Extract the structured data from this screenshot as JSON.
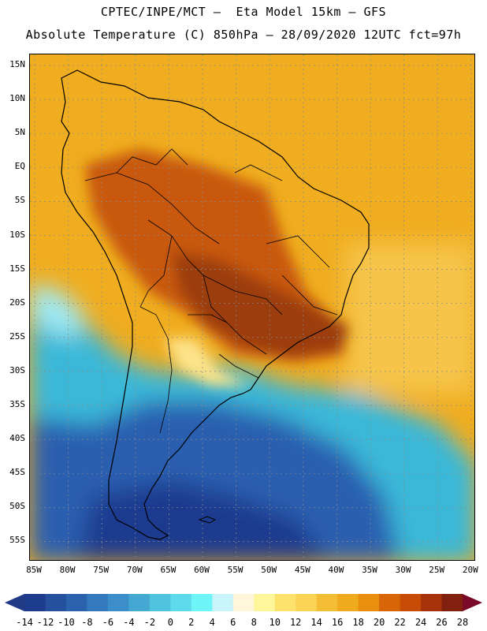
{
  "header": {
    "line1": "CPTEC/INPE/MCT –  Eta Model 15km – GFS",
    "line2": "Absolute Temperature (C) 850hPa – 28/09/2020 12UTC fct=97h"
  },
  "map": {
    "lat_labels": [
      "15N",
      "10N",
      "5N",
      "EQ",
      "5S",
      "10S",
      "15S",
      "20S",
      "25S",
      "30S",
      "35S",
      "40S",
      "45S",
      "50S",
      "55S"
    ],
    "lon_labels": [
      "85W",
      "80W",
      "75W",
      "70W",
      "65W",
      "60W",
      "55W",
      "50W",
      "45W",
      "40W",
      "35W",
      "30W",
      "25W",
      "20W"
    ]
  },
  "colorbar": {
    "labels": [
      "-14",
      "-12",
      "-10",
      "-8",
      "-6",
      "-4",
      "-2",
      "0",
      "2",
      "4",
      "6",
      "8",
      "10",
      "12",
      "14",
      "16",
      "18",
      "20",
      "22",
      "24",
      "26",
      "28"
    ],
    "colors": [
      "#1e3c8c",
      "#24509c",
      "#2b62ad",
      "#3478bd",
      "#3b8ec8",
      "#44a8d2",
      "#4ec2df",
      "#5edaea",
      "#6ef5f7",
      "#c8f4fa",
      "#fff6dc",
      "#fff59a",
      "#fde26e",
      "#fcd455",
      "#f3bd36",
      "#efab1d",
      "#e98e0d",
      "#d96606",
      "#c84c05",
      "#a8320a",
      "#822010"
    ],
    "left_arrow_color": "#203a86",
    "right_arrow_color": "#7a0a28"
  },
  "palette": {
    "land_orange": "#f0ad1f",
    "warm_core": "#c8580c",
    "hot_core": "#9c3c10",
    "ocean_warm": "#f5c44a",
    "ocean_cool": "#3bb8d8",
    "ocean_cold": "#2a5fb0",
    "polar": "#1f3b8f"
  }
}
